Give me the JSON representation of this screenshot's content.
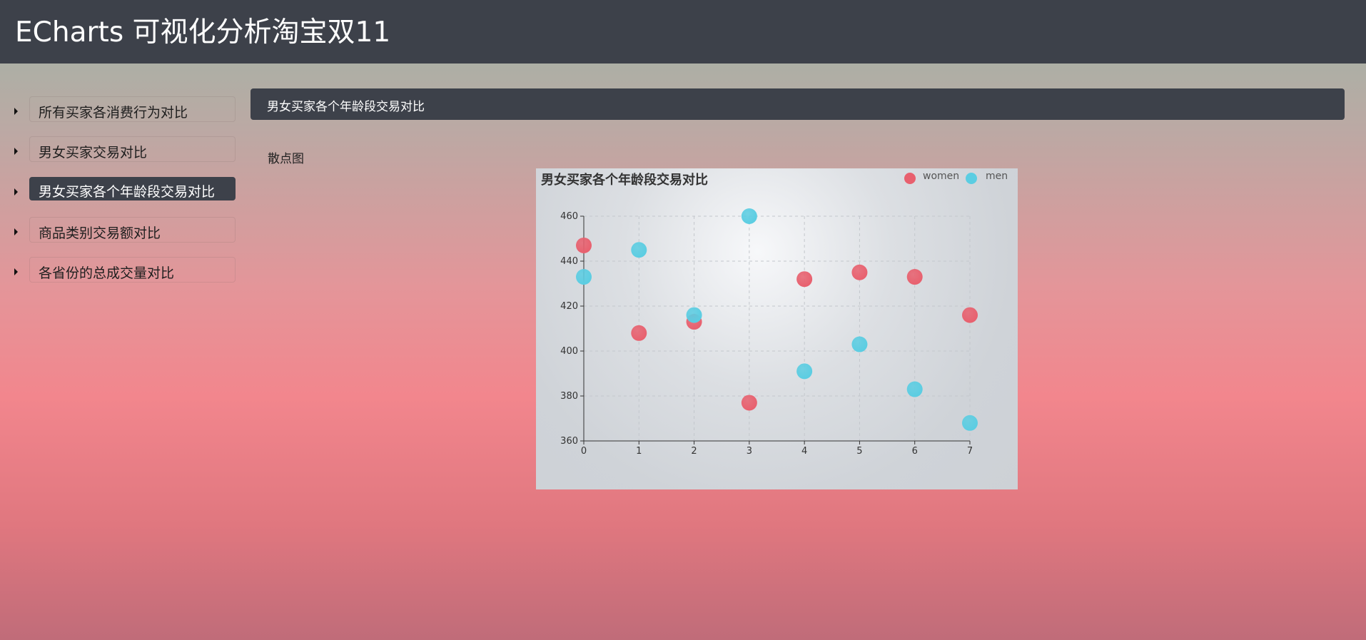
{
  "header": {
    "title": "ECharts 可视化分析淘宝双11"
  },
  "sidebar": {
    "items": [
      {
        "label": "所有买家各消费行为对比",
        "active": false
      },
      {
        "label": "男女买家交易对比",
        "active": false
      },
      {
        "label": "男女买家各个年龄段交易对比",
        "active": true
      },
      {
        "label": "商品类别交易额对比",
        "active": false
      },
      {
        "label": "各省份的总成交量对比",
        "active": false
      }
    ]
  },
  "section": {
    "title": "男女买家各个年龄段交易对比"
  },
  "subheading": "散点图",
  "chart_data": {
    "type": "scatter",
    "title": "男女买家各个年龄段交易对比",
    "xlim": [
      0,
      7
    ],
    "ylim": [
      360,
      460
    ],
    "x_ticks": [
      0,
      1,
      2,
      3,
      4,
      5,
      6,
      7
    ],
    "y_ticks": [
      360,
      380,
      400,
      420,
      440,
      460
    ],
    "grid": true,
    "legend_position": "top-right",
    "series": [
      {
        "name": "women",
        "color": "#e8606e",
        "points": [
          [
            0,
            447
          ],
          [
            1,
            408
          ],
          [
            2,
            413
          ],
          [
            3,
            377
          ],
          [
            4,
            432
          ],
          [
            5,
            435
          ],
          [
            6,
            433
          ],
          [
            7,
            416
          ]
        ]
      },
      {
        "name": "men",
        "color": "#5bcde2",
        "points": [
          [
            0,
            433
          ],
          [
            1,
            445
          ],
          [
            2,
            416
          ],
          [
            3,
            460
          ],
          [
            4,
            391
          ],
          [
            5,
            403
          ],
          [
            6,
            383
          ],
          [
            7,
            368
          ]
        ]
      }
    ]
  }
}
